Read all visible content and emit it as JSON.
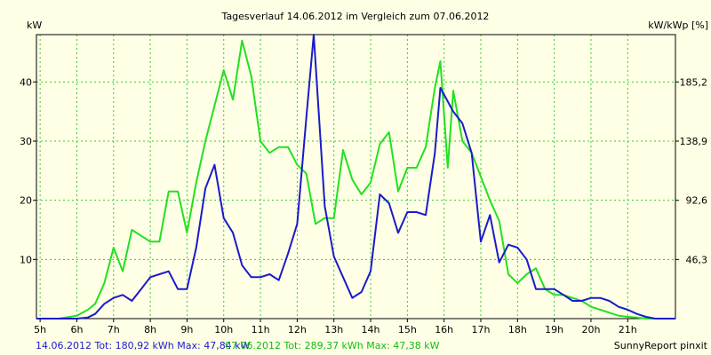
{
  "chart_data": {
    "type": "line",
    "title": "Tagesverlauf 14.06.2012 im Vergleich zum 07.06.2012",
    "ylabel_left": "kW",
    "ylabel_right": "kW/kWp [%]",
    "xlim": [
      4.9,
      22.3
    ],
    "ylim": [
      0,
      48
    ],
    "x_ticks": [
      {
        "x": 5,
        "label": "5h"
      },
      {
        "x": 6,
        "label": "6h"
      },
      {
        "x": 7,
        "label": "7h"
      },
      {
        "x": 8,
        "label": "8h"
      },
      {
        "x": 9,
        "label": "9h"
      },
      {
        "x": 10,
        "label": "10h"
      },
      {
        "x": 11,
        "label": "11h"
      },
      {
        "x": 12,
        "label": "12h"
      },
      {
        "x": 13,
        "label": "13h"
      },
      {
        "x": 14,
        "label": "14h"
      },
      {
        "x": 15,
        "label": "15h"
      },
      {
        "x": 16,
        "label": "16h"
      },
      {
        "x": 17,
        "label": "17h"
      },
      {
        "x": 18,
        "label": "18h"
      },
      {
        "x": 19,
        "label": "19h"
      },
      {
        "x": 20,
        "label": "20h"
      },
      {
        "x": 21,
        "label": "21h"
      }
    ],
    "y_ticks_left": [
      {
        "y": 10,
        "label": "10"
      },
      {
        "y": 20,
        "label": "20"
      },
      {
        "y": 30,
        "label": "30"
      },
      {
        "y": 40,
        "label": "40"
      }
    ],
    "y_ticks_right": [
      {
        "y": 10,
        "label": "46,3"
      },
      {
        "y": 20,
        "label": "92,6"
      },
      {
        "y": 30,
        "label": "138,9"
      },
      {
        "y": 40,
        "label": "185,2"
      }
    ],
    "grid": true,
    "colors": {
      "background": "#ffffe6",
      "grid": "#33cc33",
      "series_a": "#1a1acc",
      "series_b": "#22e022"
    },
    "series": [
      {
        "name": "14.06.2012",
        "color": "#1a1acc",
        "x": [
          4.9,
          5.5,
          6.0,
          6.3,
          6.5,
          6.75,
          7.0,
          7.25,
          7.5,
          7.75,
          8.0,
          8.25,
          8.5,
          8.75,
          9.0,
          9.25,
          9.5,
          9.75,
          10.0,
          10.25,
          10.5,
          10.75,
          11.0,
          11.25,
          11.5,
          11.75,
          12.0,
          12.25,
          12.45,
          12.75,
          13.0,
          13.25,
          13.5,
          13.75,
          14.0,
          14.25,
          14.5,
          14.75,
          15.0,
          15.25,
          15.5,
          15.75,
          15.9,
          16.25,
          16.5,
          16.75,
          17.0,
          17.25,
          17.5,
          17.75,
          18.0,
          18.25,
          18.5,
          18.75,
          19.0,
          19.25,
          19.5,
          19.75,
          20.0,
          20.25,
          20.5,
          20.75,
          21.0,
          21.25,
          21.5,
          21.75,
          22.3
        ],
        "y": [
          0,
          0,
          0,
          0.2,
          0.8,
          2.5,
          3.5,
          4,
          3,
          5,
          7,
          7.5,
          8,
          5,
          5,
          12,
          22,
          26,
          17,
          14.5,
          9,
          7,
          7,
          7.5,
          6.5,
          11,
          16,
          34,
          48,
          19,
          10.5,
          7,
          3.5,
          4.5,
          8,
          21,
          19.5,
          14.5,
          18,
          18,
          17.5,
          28,
          39,
          35,
          33,
          28,
          13,
          17.5,
          9.5,
          12.5,
          12,
          10,
          5,
          5,
          5,
          4,
          3,
          3,
          3.5,
          3.5,
          3,
          2,
          1.5,
          0.8,
          0.3,
          0,
          0
        ]
      },
      {
        "name": "07.06.2012",
        "color": "#22e022",
        "x": [
          4.9,
          5.5,
          6.0,
          6.3,
          6.5,
          6.75,
          7.0,
          7.25,
          7.5,
          7.75,
          8.0,
          8.25,
          8.5,
          8.75,
          9.0,
          9.25,
          9.5,
          9.75,
          10.0,
          10.25,
          10.5,
          10.75,
          11.0,
          11.25,
          11.5,
          11.75,
          12.0,
          12.25,
          12.5,
          12.75,
          13.0,
          13.25,
          13.5,
          13.75,
          14.0,
          14.25,
          14.5,
          14.75,
          15.0,
          15.25,
          15.5,
          15.75,
          15.9,
          16.1,
          16.25,
          16.5,
          16.75,
          17.0,
          17.25,
          17.5,
          17.75,
          18.0,
          18.25,
          18.5,
          18.75,
          19.0,
          19.25,
          19.5,
          19.75,
          20.0,
          20.25,
          20.5,
          20.75,
          21.0,
          21.25,
          21.5,
          22.3
        ],
        "y": [
          0,
          0,
          0.5,
          1.5,
          2.5,
          6,
          12,
          8,
          15,
          14,
          13,
          13,
          21.5,
          21.5,
          14.5,
          23,
          30,
          36,
          42,
          37,
          47,
          41,
          30,
          28,
          29,
          29,
          26,
          24.5,
          16,
          17,
          17,
          28.5,
          23.5,
          21,
          23,
          29.5,
          31.5,
          21.5,
          25.5,
          25.5,
          29,
          39,
          43.5,
          25.5,
          38.5,
          30,
          28,
          24,
          20,
          16.5,
          7.5,
          6,
          7.5,
          8.5,
          5,
          4,
          4,
          3.5,
          3,
          2,
          1.5,
          1,
          0.5,
          0.3,
          0.2,
          0,
          0
        ]
      }
    ],
    "footer_legend": [
      {
        "text": "14.06.2012 Tot: 180,92 kWh Max: 47,84 kW",
        "color": "#1a1acc"
      },
      {
        "text": "07.06.2012 Tot: 289,37 kWh Max: 47,38 kW",
        "color": "#14b814"
      }
    ],
    "credit": "SunnyReport pinxit"
  }
}
